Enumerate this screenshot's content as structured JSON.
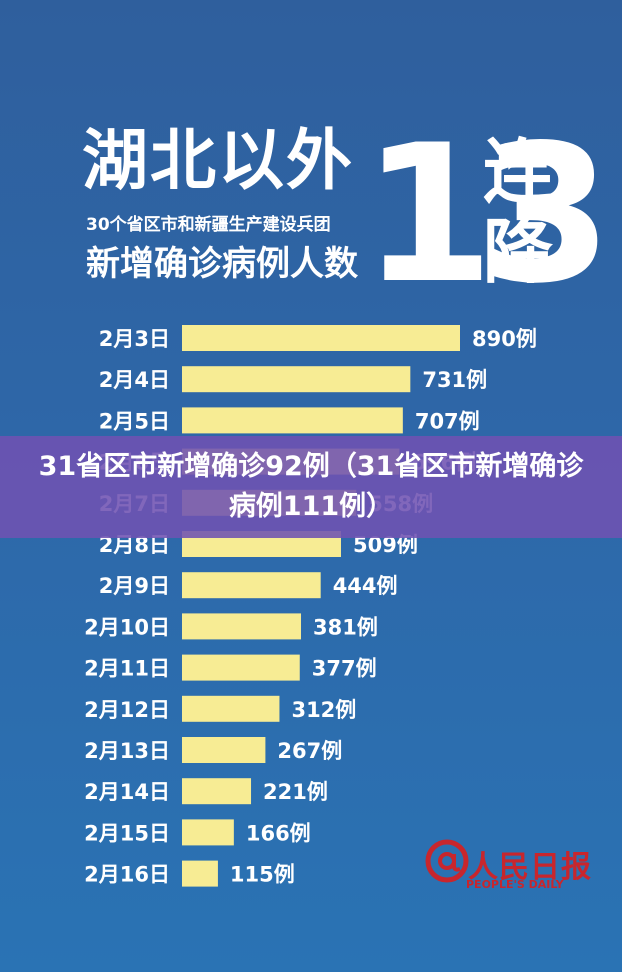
{
  "header": {
    "title": "湖北以外",
    "subtitle_small": "30个省区市和新疆生产建设兵团",
    "subtitle_main": "新增确诊病例人数",
    "big_number": "13",
    "suffix_top": "连",
    "suffix_bottom": "降"
  },
  "overlay_caption": "31省区市新增确诊92例（31省区市新增确诊病例111例）",
  "logo": {
    "name": "人民日报",
    "english": "PEOPLE'S DAILY",
    "symbol": "@"
  },
  "colors": {
    "background": "#2e66a6",
    "bar": "#f7ec94",
    "text": "#ffffff",
    "overlay": "#7052b2",
    "logo": "#c8262d"
  },
  "chart_data": {
    "type": "bar",
    "orientation": "horizontal",
    "categories": [
      "2月3日",
      "2月4日",
      "2月5日",
      "2月6日",
      "2月7日",
      "2月8日",
      "2月9日",
      "2月10日",
      "2月11日",
      "2月12日",
      "2月13日",
      "2月14日",
      "2月15日",
      "2月16日"
    ],
    "values": [
      890,
      731,
      707,
      696,
      558,
      509,
      444,
      381,
      377,
      312,
      267,
      221,
      166,
      115
    ],
    "value_labels": [
      "890例",
      "731例",
      "707例",
      "696例",
      "558例",
      "509例",
      "444例",
      "381例",
      "377例",
      "312例",
      "267例",
      "221例",
      "166例",
      "115例"
    ],
    "xlim": [
      0,
      890
    ],
    "grid": false,
    "legend": "none"
  }
}
